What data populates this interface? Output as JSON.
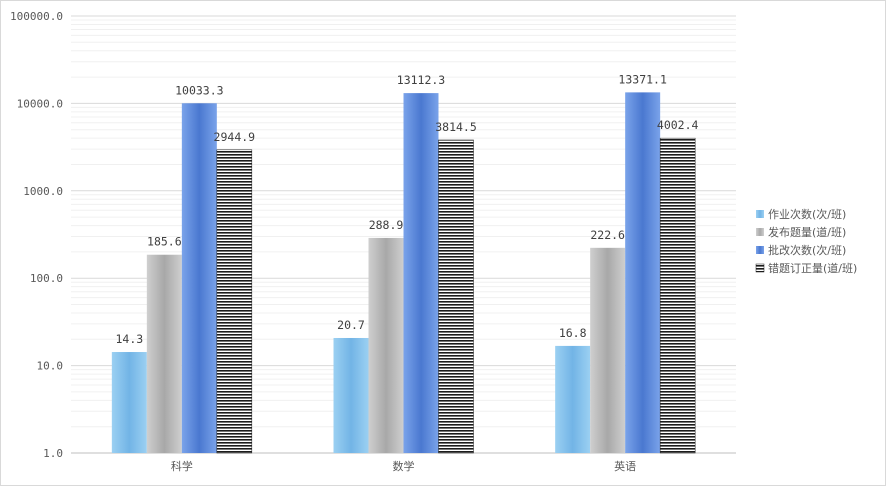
{
  "chart_data": {
    "type": "bar",
    "title": "",
    "xlabel": "",
    "ylabel": "",
    "yscale": "log",
    "ylim": [
      1,
      100000
    ],
    "y_ticks": [
      "1.0",
      "10.0",
      "100.0",
      "1000.0",
      "10000.0",
      "100000.0"
    ],
    "grid": true,
    "legend_position": "right",
    "categories": [
      "科学",
      "数学",
      "英语"
    ],
    "series": [
      {
        "name": "作业次数(次/班)",
        "values": [
          14.3,
          20.7,
          16.8
        ],
        "labels": [
          "14.3",
          "20.7",
          "16.8"
        ],
        "color": "#7fbce8"
      },
      {
        "name": "发布题量(道/班)",
        "values": [
          185.6,
          288.9,
          222.6
        ],
        "labels": [
          "185.6",
          "288.9",
          "222.6"
        ],
        "color": "#b3b3b3"
      },
      {
        "name": "批改次数(次/班)",
        "values": [
          10033.3,
          13112.3,
          13371.1
        ],
        "labels": [
          "10033.3",
          "13112.3",
          "13371.1"
        ],
        "color": "#5b87d9"
      },
      {
        "name": "错题订正量(道/班)",
        "values": [
          2944.9,
          3814.5,
          4002.4
        ],
        "labels": [
          "2944.9",
          "3814.5",
          "4002.4"
        ],
        "color": "#2e4560"
      }
    ]
  }
}
